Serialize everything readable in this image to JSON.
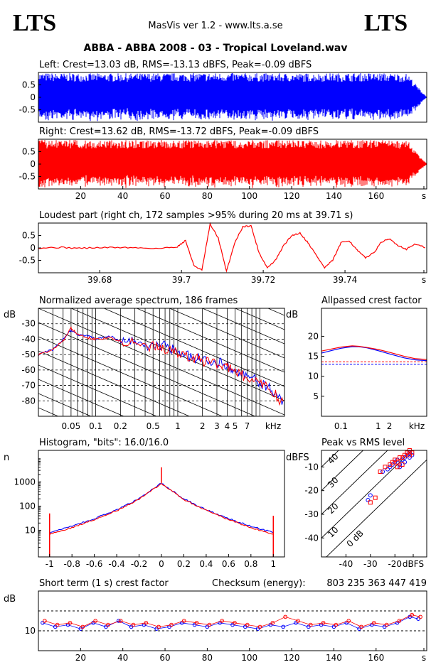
{
  "header": {
    "logo_left": "LTS",
    "logo_right": "LTS",
    "app_title": "MasVis ver 1.2 - www.lts.a.se",
    "file_title": "ABBA - ABBA 2008 - 03 - Tropical Loveland.wav"
  },
  "colors": {
    "left": "#0000ff",
    "right": "#ff0000",
    "axis": "#000000"
  },
  "chart_data": [
    {
      "id": "left-waveform",
      "type": "area",
      "title": "Left: Crest=13.03 dB, RMS=-13.13 dBFS, Peak=-0.09 dBFS",
      "ylim": [
        -1,
        1
      ],
      "yticks": [
        "0.5",
        "0",
        "-0.5"
      ],
      "xlim": [
        0,
        184
      ],
      "series": [
        {
          "name": "Left",
          "color": "#0000ff",
          "envelope": [
            [
              0,
              0.98
            ],
            [
              30,
              0.96
            ],
            [
              80,
              0.98
            ],
            [
              120,
              0.96
            ],
            [
              160,
              0.98
            ],
            [
              175,
              0.95
            ],
            [
              180,
              0.4
            ],
            [
              184,
              0.02
            ]
          ]
        }
      ]
    },
    {
      "id": "right-waveform",
      "type": "area",
      "title": "Right: Crest=13.62 dB, RMS=-13.72 dBFS, Peak=-0.09 dBFS",
      "ylim": [
        -1,
        1
      ],
      "yticks": [
        "0.5",
        "0",
        "-0.5"
      ],
      "xlim": [
        0,
        184
      ],
      "xticks": [
        "20",
        "40",
        "60",
        "80",
        "100",
        "120",
        "140",
        "160",
        "s"
      ],
      "series": [
        {
          "name": "Right",
          "color": "#ff0000",
          "envelope": [
            [
              0,
              0.98
            ],
            [
              30,
              0.96
            ],
            [
              80,
              0.98
            ],
            [
              120,
              0.96
            ],
            [
              160,
              0.98
            ],
            [
              175,
              0.95
            ],
            [
              180,
              0.4
            ],
            [
              184,
              0.02
            ]
          ]
        }
      ]
    },
    {
      "id": "loudest-part",
      "type": "line",
      "title": "Loudest part (right ch, 172 samples >95% during 20 ms at 39.71 s)",
      "xlim": [
        39.665,
        39.76
      ],
      "ylim": [
        -1,
        1
      ],
      "xticks": [
        "39.68",
        "39.7",
        "39.72",
        "39.74",
        "s"
      ],
      "yticks": [
        "0.5",
        "0",
        "-0.5"
      ],
      "series": [
        {
          "name": "Right",
          "color": "#ff0000",
          "x": [
            39.665,
            39.67,
            39.675,
            39.68,
            39.685,
            39.69,
            39.695,
            39.699,
            39.701,
            39.703,
            39.705,
            39.707,
            39.709,
            39.711,
            39.713,
            39.715,
            39.717,
            39.719,
            39.721,
            39.723,
            39.725,
            39.727,
            39.729,
            39.731,
            39.733,
            39.735,
            39.737,
            39.739,
            39.741,
            39.743,
            39.745,
            39.747,
            39.749,
            39.751,
            39.753,
            39.755,
            39.757,
            39.76
          ],
          "y": [
            0.0,
            0.02,
            -0.01,
            0.01,
            0.02,
            0.0,
            -0.02,
            0.05,
            0.3,
            -0.7,
            -0.9,
            0.95,
            0.4,
            -0.95,
            0.2,
            0.85,
            0.9,
            -0.2,
            -0.8,
            -0.5,
            0.1,
            0.5,
            0.6,
            0.2,
            -0.3,
            -0.8,
            -0.5,
            0.2,
            0.3,
            -0.1,
            -0.4,
            -0.2,
            0.25,
            0.35,
            0.1,
            -0.05,
            0.15,
            0.0
          ]
        }
      ]
    },
    {
      "id": "spectrum",
      "type": "line",
      "title": "Normalized average spectrum, 186 frames",
      "ylabel": "dB",
      "xlabel": "kHz",
      "xscale": "log",
      "xlim": [
        0.02,
        20
      ],
      "ylim": [
        -90,
        -20
      ],
      "xticks": [
        "0.05",
        "0.1",
        "0.2",
        "0.5",
        "1",
        "2",
        "3",
        "4",
        "5",
        "7",
        "kHz"
      ],
      "yticks": [
        "-30",
        "-40",
        "-50",
        "-60",
        "-70",
        "-80"
      ],
      "series": [
        {
          "name": "Left",
          "color": "#0000ff",
          "x": [
            0.02,
            0.03,
            0.04,
            0.05,
            0.06,
            0.08,
            0.1,
            0.15,
            0.2,
            0.3,
            0.5,
            0.7,
            1,
            1.5,
            2,
            3,
            4,
            5,
            7,
            10,
            14,
            20
          ],
          "y": [
            -50,
            -47,
            -40,
            -34,
            -37,
            -38,
            -40,
            -38,
            -41,
            -42,
            -45,
            -44,
            -49,
            -52,
            -53,
            -55,
            -57,
            -60,
            -64,
            -68,
            -73,
            -82
          ]
        },
        {
          "name": "Right",
          "color": "#ff0000",
          "x": [
            0.02,
            0.03,
            0.04,
            0.05,
            0.06,
            0.08,
            0.1,
            0.15,
            0.2,
            0.3,
            0.5,
            0.7,
            1,
            1.5,
            2,
            3,
            4,
            5,
            7,
            10,
            14,
            20
          ],
          "y": [
            -50,
            -47,
            -41,
            -33,
            -37,
            -39,
            -40,
            -39,
            -41,
            -43,
            -45,
            -46,
            -49,
            -52,
            -54,
            -56,
            -58,
            -61,
            -65,
            -69,
            -73,
            -83
          ]
        }
      ]
    },
    {
      "id": "allpassed-crest",
      "type": "line",
      "title": "Allpassed crest factor",
      "ylabel": "dB",
      "xlabel": "kHz",
      "xscale": "log",
      "xlim": [
        0.03,
        20
      ],
      "ylim": [
        0,
        27
      ],
      "xticks": [
        "0.1",
        "1",
        "2",
        "kHz"
      ],
      "yticks": [
        "20",
        "15",
        "10",
        "5"
      ],
      "series": [
        {
          "name": "Left",
          "color": "#0000ff",
          "x": [
            0.03,
            0.06,
            0.1,
            0.2,
            0.3,
            0.5,
            1,
            2,
            5,
            10,
            20
          ],
          "y": [
            15.8,
            16.5,
            17.0,
            17.4,
            17.4,
            17.1,
            16.4,
            15.6,
            14.6,
            14.1,
            13.9
          ]
        },
        {
          "name": "Right",
          "color": "#ff0000",
          "x": [
            0.03,
            0.06,
            0.1,
            0.2,
            0.3,
            0.5,
            1,
            2,
            5,
            10,
            20
          ],
          "y": [
            16.3,
            16.9,
            17.3,
            17.6,
            17.5,
            17.2,
            16.7,
            16.0,
            15.0,
            14.4,
            14.2
          ]
        }
      ],
      "reference_lines": [
        {
          "color": "#0000ff",
          "y": 13.0
        },
        {
          "color": "#ff0000",
          "y": 13.6
        }
      ]
    },
    {
      "id": "histogram",
      "type": "line",
      "title": "Histogram, \"bits\": 16.0/16.0",
      "ylabel": "n",
      "yscale": "log",
      "xlim": [
        -1.1,
        1.1
      ],
      "ylim": [
        0.8,
        20000
      ],
      "xticks": [
        "-1",
        "-0.8",
        "-0.6",
        "-0.4",
        "-0.2",
        "0",
        "0.2",
        "0.4",
        "0.6",
        "0.8",
        "1"
      ],
      "yticks": [
        "1000",
        "100",
        "10"
      ],
      "series": [
        {
          "name": "Left",
          "color": "#0000ff",
          "x": [
            -1,
            -0.8,
            -0.6,
            -0.4,
            -0.2,
            0,
            0.2,
            0.4,
            0.6,
            0.8,
            1
          ],
          "y": [
            8,
            15,
            30,
            70,
            200,
            900,
            200,
            70,
            30,
            15,
            8
          ]
        },
        {
          "name": "Right",
          "color": "#ff0000",
          "x": [
            -1,
            -0.8,
            -0.6,
            -0.4,
            -0.2,
            0,
            0.2,
            0.4,
            0.6,
            0.8,
            1
          ],
          "y": [
            7,
            13,
            28,
            65,
            190,
            850,
            190,
            65,
            28,
            13,
            7
          ]
        }
      ]
    },
    {
      "id": "peak-vs-rms",
      "type": "scatter",
      "title": "Peak vs RMS level",
      "ylabel": "dBFS",
      "xlabel": "dBFS",
      "xlim": [
        -50,
        -7
      ],
      "ylim": [
        -48,
        -3
      ],
      "xticks": [
        "-40",
        "-30",
        "-20",
        "dBFS"
      ],
      "yticks": [
        "-10",
        "-20",
        "-30",
        "-40"
      ],
      "diagonal_labels": [
        "40",
        "30",
        "20",
        "10",
        "0 dB"
      ],
      "series": [
        {
          "name": "Left",
          "color": "#0000ff",
          "x": [
            -25,
            -23,
            -22,
            -21,
            -20,
            -19,
            -18,
            -17,
            -16,
            -15,
            -14,
            -14,
            -13,
            -16,
            -18,
            -30,
            -31
          ],
          "y": [
            -12,
            -11,
            -10,
            -9,
            -8,
            -7,
            -9,
            -7,
            -6,
            -5,
            -6,
            -4,
            -5,
            -8,
            -10,
            -22,
            -24
          ]
        },
        {
          "name": "Right",
          "color": "#ff0000",
          "x": [
            -26,
            -24,
            -22,
            -21,
            -20,
            -19,
            -18,
            -17,
            -16,
            -15,
            -14,
            -14,
            -13,
            -17,
            -19,
            -28,
            -30
          ],
          "y": [
            -12,
            -10,
            -9,
            -8,
            -7,
            -8,
            -6,
            -6,
            -5,
            -4,
            -5,
            -3,
            -4,
            -9,
            -10,
            -23,
            -25
          ]
        }
      ]
    },
    {
      "id": "short-term-crest",
      "type": "scatter",
      "title": "Short term (1 s) crest factor",
      "ylabel": "dB",
      "xlim": [
        0,
        184
      ],
      "ylim": [
        0,
        30
      ],
      "xticks": [
        "20",
        "40",
        "60",
        "80",
        "100",
        "120",
        "140",
        "160",
        "s"
      ],
      "yticks": [
        "10"
      ],
      "checksum_label": "Checksum (energy):",
      "checksum_value": "803 235 363 447 419",
      "series": [
        {
          "name": "Left",
          "color": "#0000ff",
          "x": [
            2,
            8,
            14,
            20,
            26,
            32,
            38,
            44,
            50,
            56,
            62,
            68,
            74,
            80,
            86,
            92,
            98,
            104,
            110,
            116,
            122,
            128,
            134,
            140,
            146,
            152,
            158,
            164,
            170,
            176,
            180
          ],
          "y": [
            14,
            12,
            13,
            11,
            14,
            12,
            15,
            12,
            13,
            11,
            12,
            14,
            13,
            12,
            14,
            13,
            12,
            11,
            13,
            12,
            14,
            12,
            13,
            12,
            14,
            11,
            13,
            12,
            14,
            17,
            16
          ]
        },
        {
          "name": "Right",
          "color": "#ff0000",
          "x": [
            3,
            9,
            15,
            21,
            27,
            33,
            39,
            45,
            51,
            57,
            63,
            69,
            75,
            81,
            87,
            93,
            99,
            105,
            111,
            117,
            123,
            129,
            135,
            141,
            147,
            153,
            159,
            165,
            171,
            177,
            181
          ],
          "y": [
            15,
            13,
            14,
            12,
            15,
            13,
            15,
            13,
            14,
            12,
            13,
            15,
            14,
            13,
            15,
            14,
            13,
            12,
            14,
            17,
            15,
            13,
            14,
            13,
            15,
            12,
            14,
            13,
            15,
            18,
            17
          ]
        }
      ]
    }
  ]
}
